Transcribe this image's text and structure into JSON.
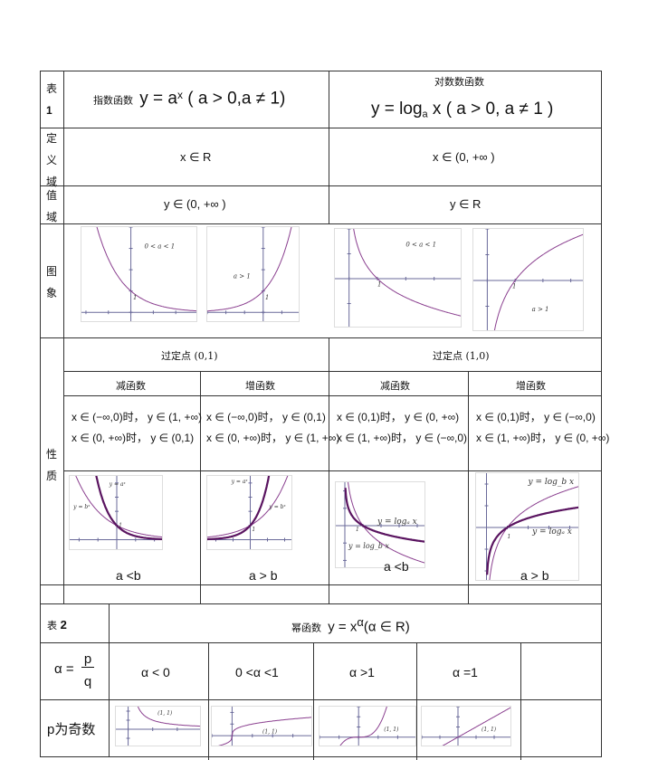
{
  "table1": {
    "label": "表",
    "label_num": "1",
    "exp_title_cn": "指数函数",
    "exp_formula": "y = a",
    "exp_sup": "x",
    "exp_cond": " ( a > 0,a ≠ 1)",
    "log_title_cn": "对数数函数",
    "log_formula": "y = log",
    "log_sub": "a",
    "log_cond": " x ( a > 0, a ≠ 1 )",
    "domain_label": "定义域",
    "domain_exp": "x ∈ R",
    "domain_log": "x ∈ (0, +∞ )",
    "range_label": "值域",
    "range_exp": "y ∈ (0, +∞ )",
    "range_log": "y ∈ R",
    "graph_label": "图象",
    "graph_labels": {
      "lt1": "0 < a < 1",
      "gt1": "a > 1",
      "one": "1"
    },
    "prop_label": "性质",
    "fixed_exp": "过定点 (0,1)",
    "fixed_log": "过定点 (1,0)",
    "mono": [
      "减函数",
      "增函数",
      "减函数",
      "增函数"
    ],
    "props": [
      [
        "x ∈ (−∞,0)时， y ∈ (1, +∞)",
        "x ∈ (0, +∞)时， y ∈ (0,1)"
      ],
      [
        "x ∈ (−∞,0)时， y ∈ (0,1)",
        "x ∈ (0, +∞)时， y ∈ (1, +∞)"
      ],
      [
        "x ∈ (0,1)时， y ∈ (0, +∞)",
        "x ∈ (1, +∞)时， y ∈ (−∞,0)"
      ],
      [
        "x ∈ (0,1)时， y ∈ (−∞,0)",
        "x ∈ (1, +∞)时， y ∈ (0, +∞)"
      ]
    ],
    "compare_labels": {
      "ax": "y = aˣ",
      "bx": "y = bˣ",
      "loga": "y = logₐ x",
      "logb": "y = log_b x",
      "one": "1"
    },
    "compare": [
      "a <b",
      "a > b",
      "a <b",
      "a > b"
    ]
  },
  "table2": {
    "label": "表",
    "label_num": "2",
    "title_cn": "幂函数",
    "formula": "y = x",
    "sup": "α",
    "cond": "(α ∈ R)",
    "alpha_eq": "α =",
    "p": "p",
    "q": "q",
    "cases": [
      "α < 0",
      "0 <α <1",
      "α >1",
      "α =1"
    ],
    "row_label": "p为奇数",
    "point": "(1, 1)"
  },
  "colors": {
    "curve": "#8a3f8f",
    "curve_dark": "#5a1460",
    "axis": "#6a6a9a",
    "border": "#333333"
  }
}
